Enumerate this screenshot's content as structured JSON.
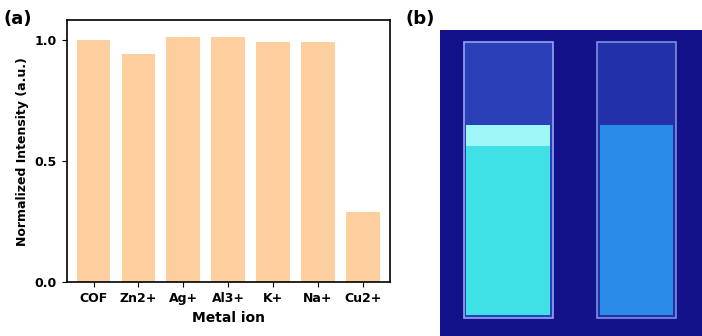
{
  "chart_data": {
    "type": "bar",
    "title": "(a)",
    "x_label": "Metal ion",
    "y_label": "Normalized Intensity (a.u.)",
    "categories": [
      "COF",
      "Zn2+",
      "Ag+",
      "Al3+",
      "K+",
      "Na+",
      "Cu2+"
    ],
    "values": [
      1.0,
      0.94,
      1.01,
      1.01,
      0.99,
      0.99,
      0.29
    ],
    "color": "#fdcf9e",
    "ylim": [
      0,
      1.08
    ],
    "yticks": [
      {
        "value": 0,
        "label": "0.0"
      },
      {
        "value": 0.5,
        "label": "0.5"
      },
      {
        "value": 1.0,
        "label": "1.0"
      }
    ],
    "grid": false
  },
  "image": {
    "label": "(b)"
  }
}
